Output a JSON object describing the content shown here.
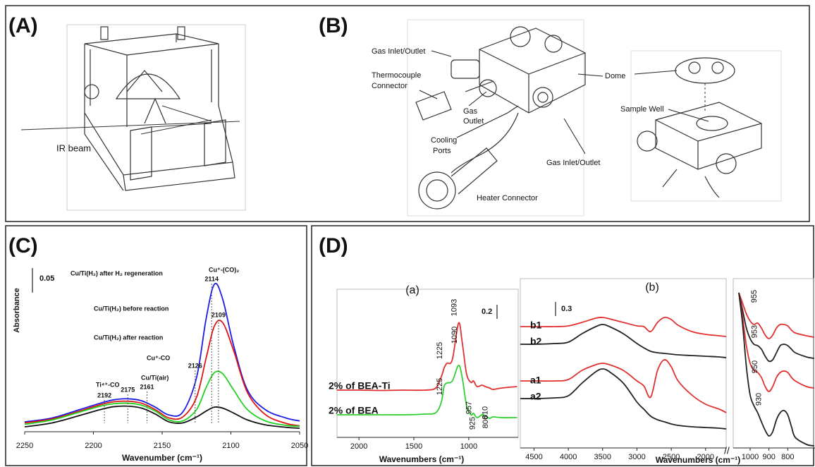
{
  "figure": {
    "panel_labels": [
      "(A)",
      "(B)",
      "(C)",
      "(D)"
    ],
    "A": {
      "labels": [
        "IR beam"
      ]
    },
    "B": {
      "labels": [
        "Gas Inlet/Outlet",
        [
          "Thermocouple",
          "Connector"
        ],
        [
          "Gas",
          "Outlet"
        ],
        [
          "Cooling",
          "Ports"
        ],
        "Dome",
        "Sample Well",
        "Gas Inlet/Outlet",
        "Heater Connector"
      ]
    }
  },
  "chart_data": [
    {
      "type": "line",
      "x_label": "Wavenumber (cm⁻¹)",
      "y_label": "Absorbance",
      "x": [
        2250,
        2230,
        2210,
        2195,
        2185,
        2175,
        2165,
        2155,
        2145,
        2135,
        2125,
        2118,
        2112,
        2106,
        2098,
        2088,
        2075,
        2060,
        2050
      ],
      "xlim": [
        2250,
        2050
      ],
      "xticks": [
        2250,
        2200,
        2150,
        2100,
        2050
      ],
      "ylim": [
        0,
        0.34
      ],
      "scale_bar": 0.05,
      "series": [
        {
          "name": "Cu/Ti(H₂) after H₂ regeneration",
          "color": "#1c1ce6",
          "values": [
            0.02,
            0.028,
            0.045,
            0.058,
            0.065,
            0.067,
            0.063,
            0.05,
            0.034,
            0.04,
            0.11,
            0.23,
            0.3,
            0.27,
            0.175,
            0.085,
            0.045,
            0.028,
            0.022
          ]
        },
        {
          "name": "Cu/Ti(H₂) before reaction",
          "color": "#e01414",
          "values": [
            0.018,
            0.026,
            0.042,
            0.055,
            0.061,
            0.062,
            0.058,
            0.045,
            0.028,
            0.03,
            0.07,
            0.15,
            0.215,
            0.222,
            0.165,
            0.08,
            0.035,
            0.017,
            0.012
          ]
        },
        {
          "name": "Cu/Ti(H₂) after reaction",
          "color": "#1fd21f",
          "values": [
            0.015,
            0.024,
            0.04,
            0.052,
            0.057,
            0.058,
            0.054,
            0.042,
            0.024,
            0.022,
            0.045,
            0.09,
            0.12,
            0.118,
            0.085,
            0.045,
            0.022,
            0.013,
            0.011
          ]
        },
        {
          "name": "Cu/Ti(air)",
          "color": "#111111",
          "values": [
            0.01,
            0.018,
            0.033,
            0.045,
            0.051,
            0.052,
            0.048,
            0.036,
            0.02,
            0.018,
            0.03,
            0.042,
            0.05,
            0.048,
            0.038,
            0.024,
            0.014,
            0.009,
            0.007
          ]
        }
      ],
      "peak_labels": [
        2114,
        2109,
        2126,
        2192,
        2175,
        2161
      ],
      "annotations": [
        "Cu⁺-(CO)₂",
        "Cu⁺-CO",
        "Ti⁴⁺-CO"
      ],
      "annotation_color": "#e0197d"
    },
    {
      "type": "line",
      "title": "(a)",
      "x_label": "Wavenumbers (cm⁻¹)",
      "x": [
        2200,
        2000,
        1800,
        1600,
        1400,
        1300,
        1250,
        1225,
        1200,
        1150,
        1093,
        1060,
        1020,
        980,
        957,
        925,
        880,
        850,
        810,
        780,
        700,
        560
      ],
      "xlim": [
        2200,
        550
      ],
      "xticks": [
        2000,
        1500,
        1000
      ],
      "ylim": [
        0,
        2.1
      ],
      "scale_bar": 0.2,
      "series": [
        {
          "name": "2% of BEA-Ti",
          "color": "#e03030",
          "values": [
            0.67,
            0.67,
            0.665,
            0.67,
            0.67,
            0.7,
            0.86,
            0.98,
            1.05,
            1.1,
            1.62,
            1.35,
            0.9,
            0.78,
            0.8,
            0.72,
            0.74,
            0.72,
            0.7,
            0.68,
            0.7,
            0.72
          ]
        },
        {
          "name": "2% of BEA",
          "color": "#30d030",
          "values": [
            0.32,
            0.32,
            0.32,
            0.32,
            0.33,
            0.35,
            0.5,
            0.72,
            0.77,
            0.8,
            1.02,
            0.85,
            0.45,
            0.32,
            0.34,
            0.28,
            0.32,
            0.31,
            0.27,
            0.29,
            0.28,
            0.28
          ]
        }
      ],
      "peak_labels": [
        1225,
        1093,
        1090,
        1225,
        957,
        925,
        806,
        810
      ]
    },
    {
      "type": "line",
      "title": "(b)",
      "x_label": "Wavenumbers (cm⁻¹)",
      "x": [
        4700,
        4500,
        4200,
        4000,
        3800,
        3600,
        3500,
        3400,
        3200,
        3000,
        2900,
        2800,
        2700,
        2600,
        2500,
        2400,
        2200,
        2000,
        1800,
        1700
      ],
      "xlim": [
        4700,
        1700
      ],
      "xticks": [
        4500,
        4000,
        3500,
        3000,
        2500,
        2000
      ],
      "ylim": [
        0,
        3.6
      ],
      "scale_bar": 0.3,
      "series": [
        {
          "name": "b1",
          "color": "#e03030",
          "values": [
            2.58,
            2.58,
            2.58,
            2.595,
            2.67,
            2.76,
            2.775,
            2.745,
            2.67,
            2.595,
            2.58,
            2.475,
            2.67,
            2.775,
            2.73,
            2.61,
            2.475,
            2.415,
            2.385,
            2.37
          ]
        },
        {
          "name": "b2",
          "color": "#222222",
          "values": [
            2.205,
            2.205,
            2.22,
            2.25,
            2.43,
            2.58,
            2.625,
            2.58,
            2.43,
            2.22,
            2.13,
            2.055,
            2.025,
            2.01,
            1.995,
            1.98,
            1.965,
            1.95,
            1.935,
            1.92
          ]
        },
        {
          "name": "a1",
          "color": "#e03030",
          "values": [
            1.425,
            1.425,
            1.425,
            1.455,
            1.65,
            1.77,
            1.8,
            1.77,
            1.65,
            1.425,
            1.32,
            1.08,
            1.65,
            1.875,
            1.725,
            1.425,
            1.125,
            0.93,
            0.825,
            0.75
          ]
        },
        {
          "name": "a2",
          "color": "#222222",
          "values": [
            1.05,
            1.05,
            1.065,
            1.11,
            1.38,
            1.62,
            1.68,
            1.62,
            1.38,
            0.975,
            0.825,
            0.675,
            0.6,
            0.555,
            0.51,
            0.48,
            0.45,
            0.435,
            0.42,
            0.405
          ]
        }
      ]
    },
    {
      "type": "line",
      "x": [
        1060,
        1040,
        1020,
        1000,
        980,
        960,
        940,
        920,
        900,
        880,
        860,
        840,
        820,
        800,
        780,
        760,
        700,
        660
      ],
      "xlim": [
        1090,
        655
      ],
      "xticks": [
        1000,
        900,
        800
      ],
      "ylim": [
        0,
        3.6
      ],
      "series": [
        {
          "color": "#e03030",
          "values": [
            3.3,
            3.075,
            2.85,
            2.7,
            2.625,
            2.655,
            2.55,
            2.4,
            2.325,
            2.4,
            2.55,
            2.625,
            2.625,
            2.595,
            2.505,
            2.445,
            2.385,
            2.355
          ]
        },
        {
          "color": "#222222",
          "values": [
            3.3,
            2.925,
            2.55,
            2.325,
            2.205,
            2.175,
            2.1,
            1.95,
            1.845,
            1.875,
            2.025,
            2.175,
            2.205,
            2.175,
            2.1,
            2.025,
            1.935,
            1.905
          ]
        },
        {
          "color": "#e03030",
          "values": [
            3.3,
            2.775,
            2.175,
            1.8,
            1.65,
            1.605,
            1.5,
            1.305,
            1.2,
            1.305,
            1.5,
            1.605,
            1.635,
            1.605,
            1.5,
            1.425,
            1.305,
            1.275
          ]
        },
        {
          "color": "#222222",
          "values": [
            3.3,
            2.625,
            1.725,
            1.125,
            0.9,
            0.75,
            0.555,
            0.375,
            0.255,
            0.345,
            0.6,
            0.75,
            0.795,
            0.705,
            0.45,
            0.225,
            0.075,
            0.045
          ]
        }
      ],
      "peak_labels": [
        955,
        953,
        950,
        930
      ]
    }
  ]
}
